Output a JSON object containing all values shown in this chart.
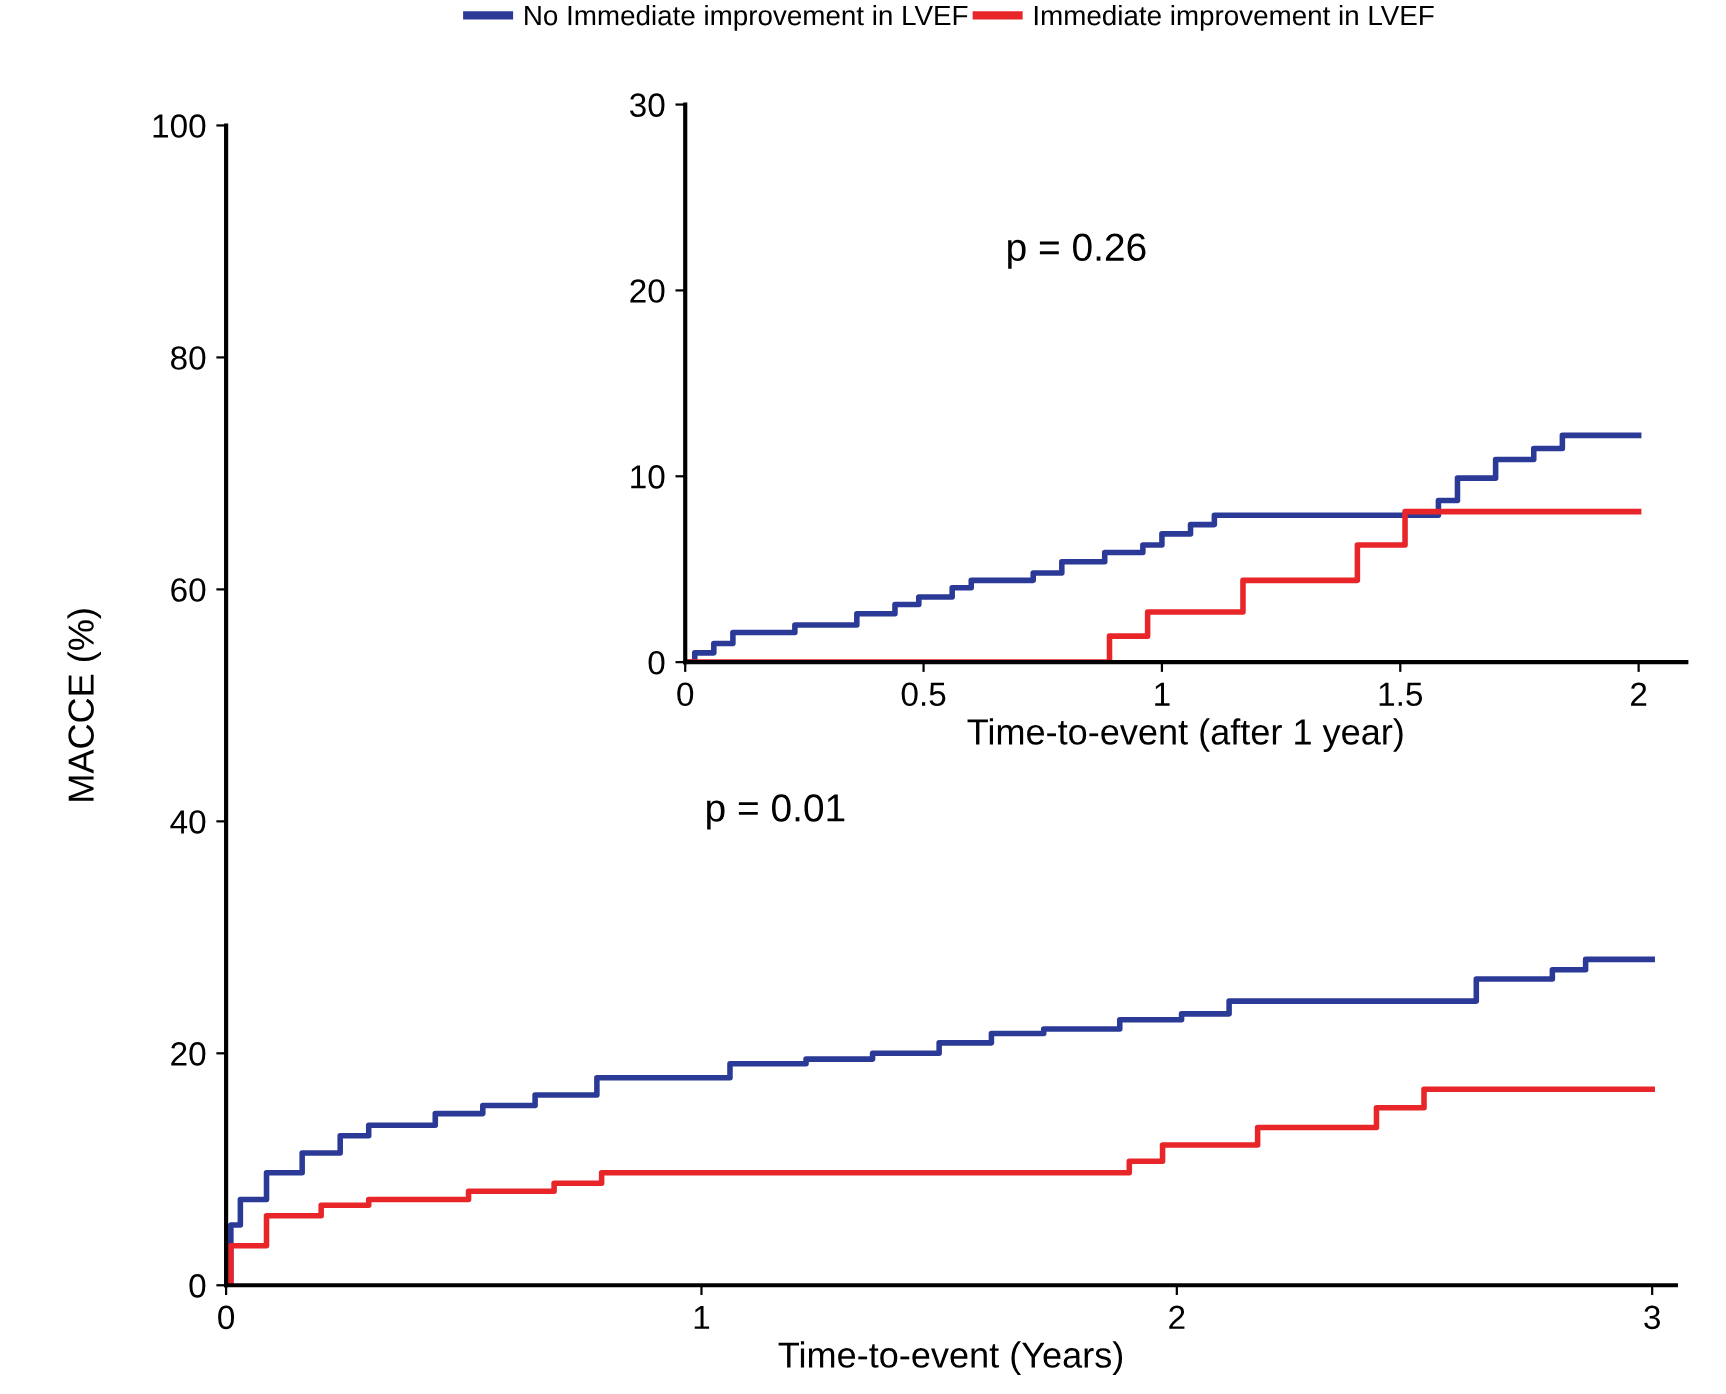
{
  "chart_data": [
    {
      "type": "step",
      "xlabel": "Time-to-event (Years)",
      "ylabel": "MACCE (%)",
      "xlim": [
        0,
        3.05
      ],
      "ylim": [
        0,
        100
      ],
      "xticks": [
        0,
        1,
        2,
        3
      ],
      "yticks": [
        0,
        20,
        40,
        60,
        80,
        100
      ],
      "grid": false,
      "legend": "top",
      "annotations": [
        "p = 0.01"
      ],
      "series": [
        {
          "name": "No Immediate improvement in LVEF",
          "color": "#2b3a97",
          "x": [
            0,
            0.01,
            0.03,
            0.085,
            0.16,
            0.24,
            0.3,
            0.44,
            0.54,
            0.65,
            0.78,
            1.06,
            1.22,
            1.36,
            1.5,
            1.61,
            1.72,
            1.88,
            2.01,
            2.11,
            2.63,
            2.79,
            2.86,
            3.0
          ],
          "values": [
            0,
            5.2,
            7.4,
            9.7,
            11.4,
            12.9,
            13.8,
            14.8,
            15.5,
            16.4,
            17.9,
            19.1,
            19.5,
            20.0,
            20.9,
            21.7,
            22.1,
            22.9,
            23.4,
            24.5,
            26.4,
            27.2,
            28.1,
            28.1
          ]
        },
        {
          "name": "Immediate improvement in LVEF",
          "color": "#e8262a",
          "x": [
            0,
            0.01,
            0.085,
            0.2,
            0.3,
            0.51,
            0.69,
            0.79,
            1.9,
            1.97,
            2.17,
            2.42,
            2.52,
            3.0
          ],
          "values": [
            0,
            3.4,
            6.0,
            6.9,
            7.4,
            8.1,
            8.8,
            9.7,
            10.7,
            12.1,
            13.6,
            15.3,
            16.9,
            16.9
          ]
        }
      ]
    },
    {
      "type": "step",
      "xlabel": "Time-to-event (after 1 year)",
      "xlim": [
        0,
        2.1
      ],
      "ylim": [
        0,
        30
      ],
      "xticks": [
        0,
        {
          "value": 0.5,
          "label": "0.5"
        },
        1,
        {
          "value": 1.5,
          "label": "1.5"
        },
        2
      ],
      "yticks": [
        0,
        10,
        20,
        30
      ],
      "grid": false,
      "annotations": [
        "p = 0.26"
      ],
      "series": [
        {
          "color": "#2b3a97",
          "x": [
            0,
            0.02,
            0.06,
            0.1,
            0.23,
            0.36,
            0.44,
            0.49,
            0.56,
            0.6,
            0.73,
            0.79,
            0.88,
            0.96,
            1.0,
            1.06,
            1.11,
            1.58,
            1.62,
            1.7,
            1.78,
            1.84,
            2.0
          ],
          "values": [
            0,
            0.5,
            1.0,
            1.6,
            2.0,
            2.6,
            3.1,
            3.5,
            4.0,
            4.4,
            4.8,
            5.4,
            5.9,
            6.3,
            6.9,
            7.4,
            7.9,
            8.7,
            9.9,
            10.9,
            11.5,
            12.2,
            12.2
          ]
        },
        {
          "color": "#e8262a",
          "x": [
            0,
            0.89,
            0.97,
            1.17,
            1.41,
            1.51,
            2.0
          ],
          "values": [
            0,
            1.4,
            2.7,
            4.4,
            6.3,
            8.1,
            8.1
          ]
        }
      ]
    }
  ]
}
